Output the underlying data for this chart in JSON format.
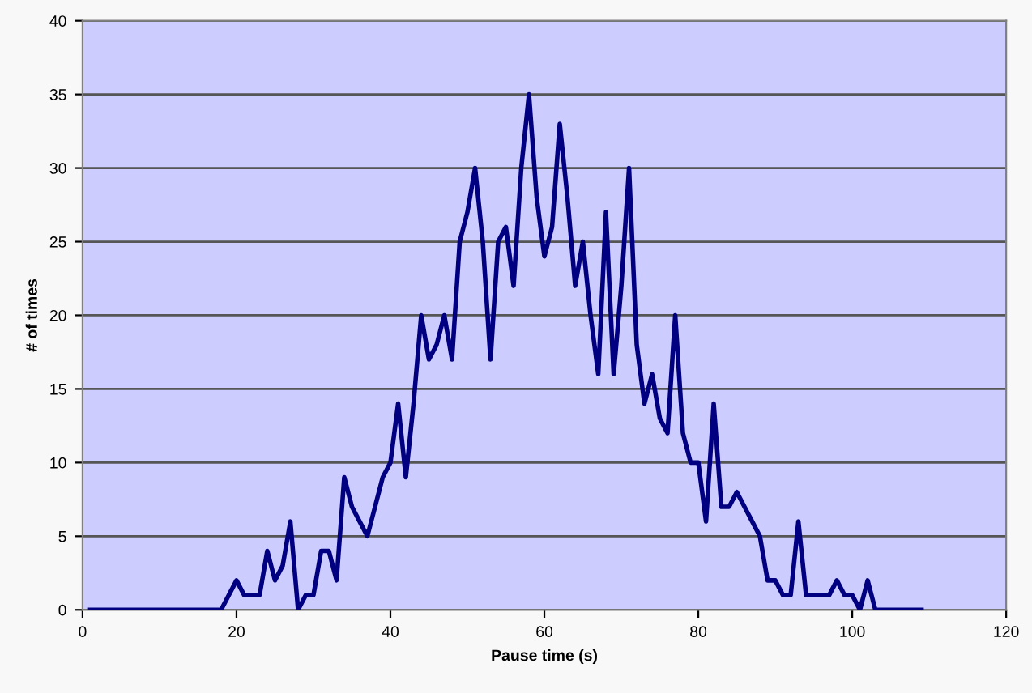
{
  "chart_data": {
    "type": "line",
    "xlabel": "Pause time (s)",
    "ylabel": "# of times",
    "x": [
      1,
      2,
      3,
      4,
      5,
      6,
      7,
      8,
      9,
      10,
      11,
      12,
      13,
      14,
      15,
      16,
      17,
      18,
      19,
      20,
      21,
      22,
      23,
      24,
      25,
      26,
      27,
      28,
      29,
      30,
      31,
      32,
      33,
      34,
      35,
      36,
      37,
      38,
      39,
      40,
      41,
      42,
      43,
      44,
      45,
      46,
      47,
      48,
      49,
      50,
      51,
      52,
      53,
      54,
      55,
      56,
      57,
      58,
      59,
      60,
      61,
      62,
      63,
      64,
      65,
      66,
      67,
      68,
      69,
      70,
      71,
      72,
      73,
      74,
      75,
      76,
      77,
      78,
      79,
      80,
      81,
      82,
      83,
      84,
      85,
      86,
      87,
      88,
      89,
      90,
      91,
      92,
      93,
      94,
      95,
      96,
      97,
      98,
      99,
      100,
      101,
      102,
      103,
      104,
      105,
      106,
      107,
      108,
      109
    ],
    "series": [
      {
        "color": "#000080",
        "values": [
          0,
          0,
          0,
          0,
          0,
          0,
          0,
          0,
          0,
          0,
          0,
          0,
          0,
          0,
          0,
          0,
          0,
          0,
          1,
          2,
          1,
          1,
          1,
          4,
          2,
          3,
          6,
          0,
          1,
          1,
          4,
          4,
          2,
          9,
          7,
          6,
          5,
          7,
          9,
          10,
          14,
          9,
          14,
          20,
          17,
          18,
          20,
          17,
          25,
          27,
          30,
          25,
          17,
          25,
          26,
          22,
          30,
          35,
          28,
          24,
          26,
          33,
          28,
          22,
          25,
          20,
          16,
          27,
          16,
          22,
          30,
          18,
          14,
          16,
          13,
          12,
          20,
          12,
          10,
          10,
          6,
          14,
          7,
          7,
          8,
          7,
          6,
          5,
          2,
          2,
          1,
          1,
          6,
          1,
          1,
          1,
          1,
          2,
          1,
          1,
          0,
          2,
          0,
          0,
          0,
          0,
          0,
          0,
          0
        ]
      }
    ],
    "xlim": [
      0,
      120
    ],
    "ylim": [
      0,
      40
    ],
    "xticks": [
      0,
      20,
      40,
      60,
      80,
      100,
      120
    ],
    "yticks": [
      0,
      5,
      10,
      15,
      20,
      25,
      30,
      35,
      40
    ],
    "grid": "y",
    "marker": "none",
    "line_style": "solid"
  }
}
